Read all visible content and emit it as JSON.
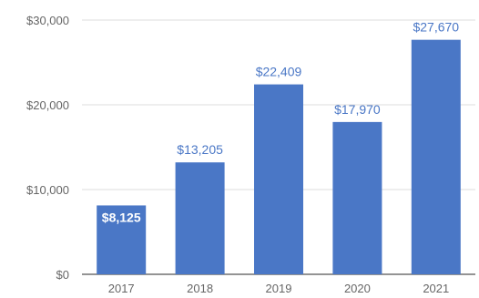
{
  "chart_data": {
    "type": "bar",
    "title": "",
    "xlabel": "",
    "ylabel": "",
    "categories": [
      "2017",
      "2018",
      "2019",
      "2020",
      "2021"
    ],
    "values": [
      8125,
      13205,
      22409,
      17970,
      27670
    ],
    "value_labels": [
      "$8,125",
      "$13,205",
      "$22,409",
      "$17,970",
      "$27,670"
    ],
    "ylim": [
      0,
      30000
    ],
    "y_ticks": [
      0,
      10000,
      20000,
      30000
    ],
    "y_tick_labels": [
      "$0",
      "$10,000",
      "$20,000",
      "$30,000"
    ],
    "grid": true,
    "legend": "none",
    "label_inside_threshold": 10000
  },
  "colors": {
    "bar": "#4a77c6",
    "label_outside": "#4a77c6",
    "label_inside": "#ffffff",
    "grid": "#dddddd",
    "baseline": "#555555",
    "tick_text": "#666666"
  }
}
